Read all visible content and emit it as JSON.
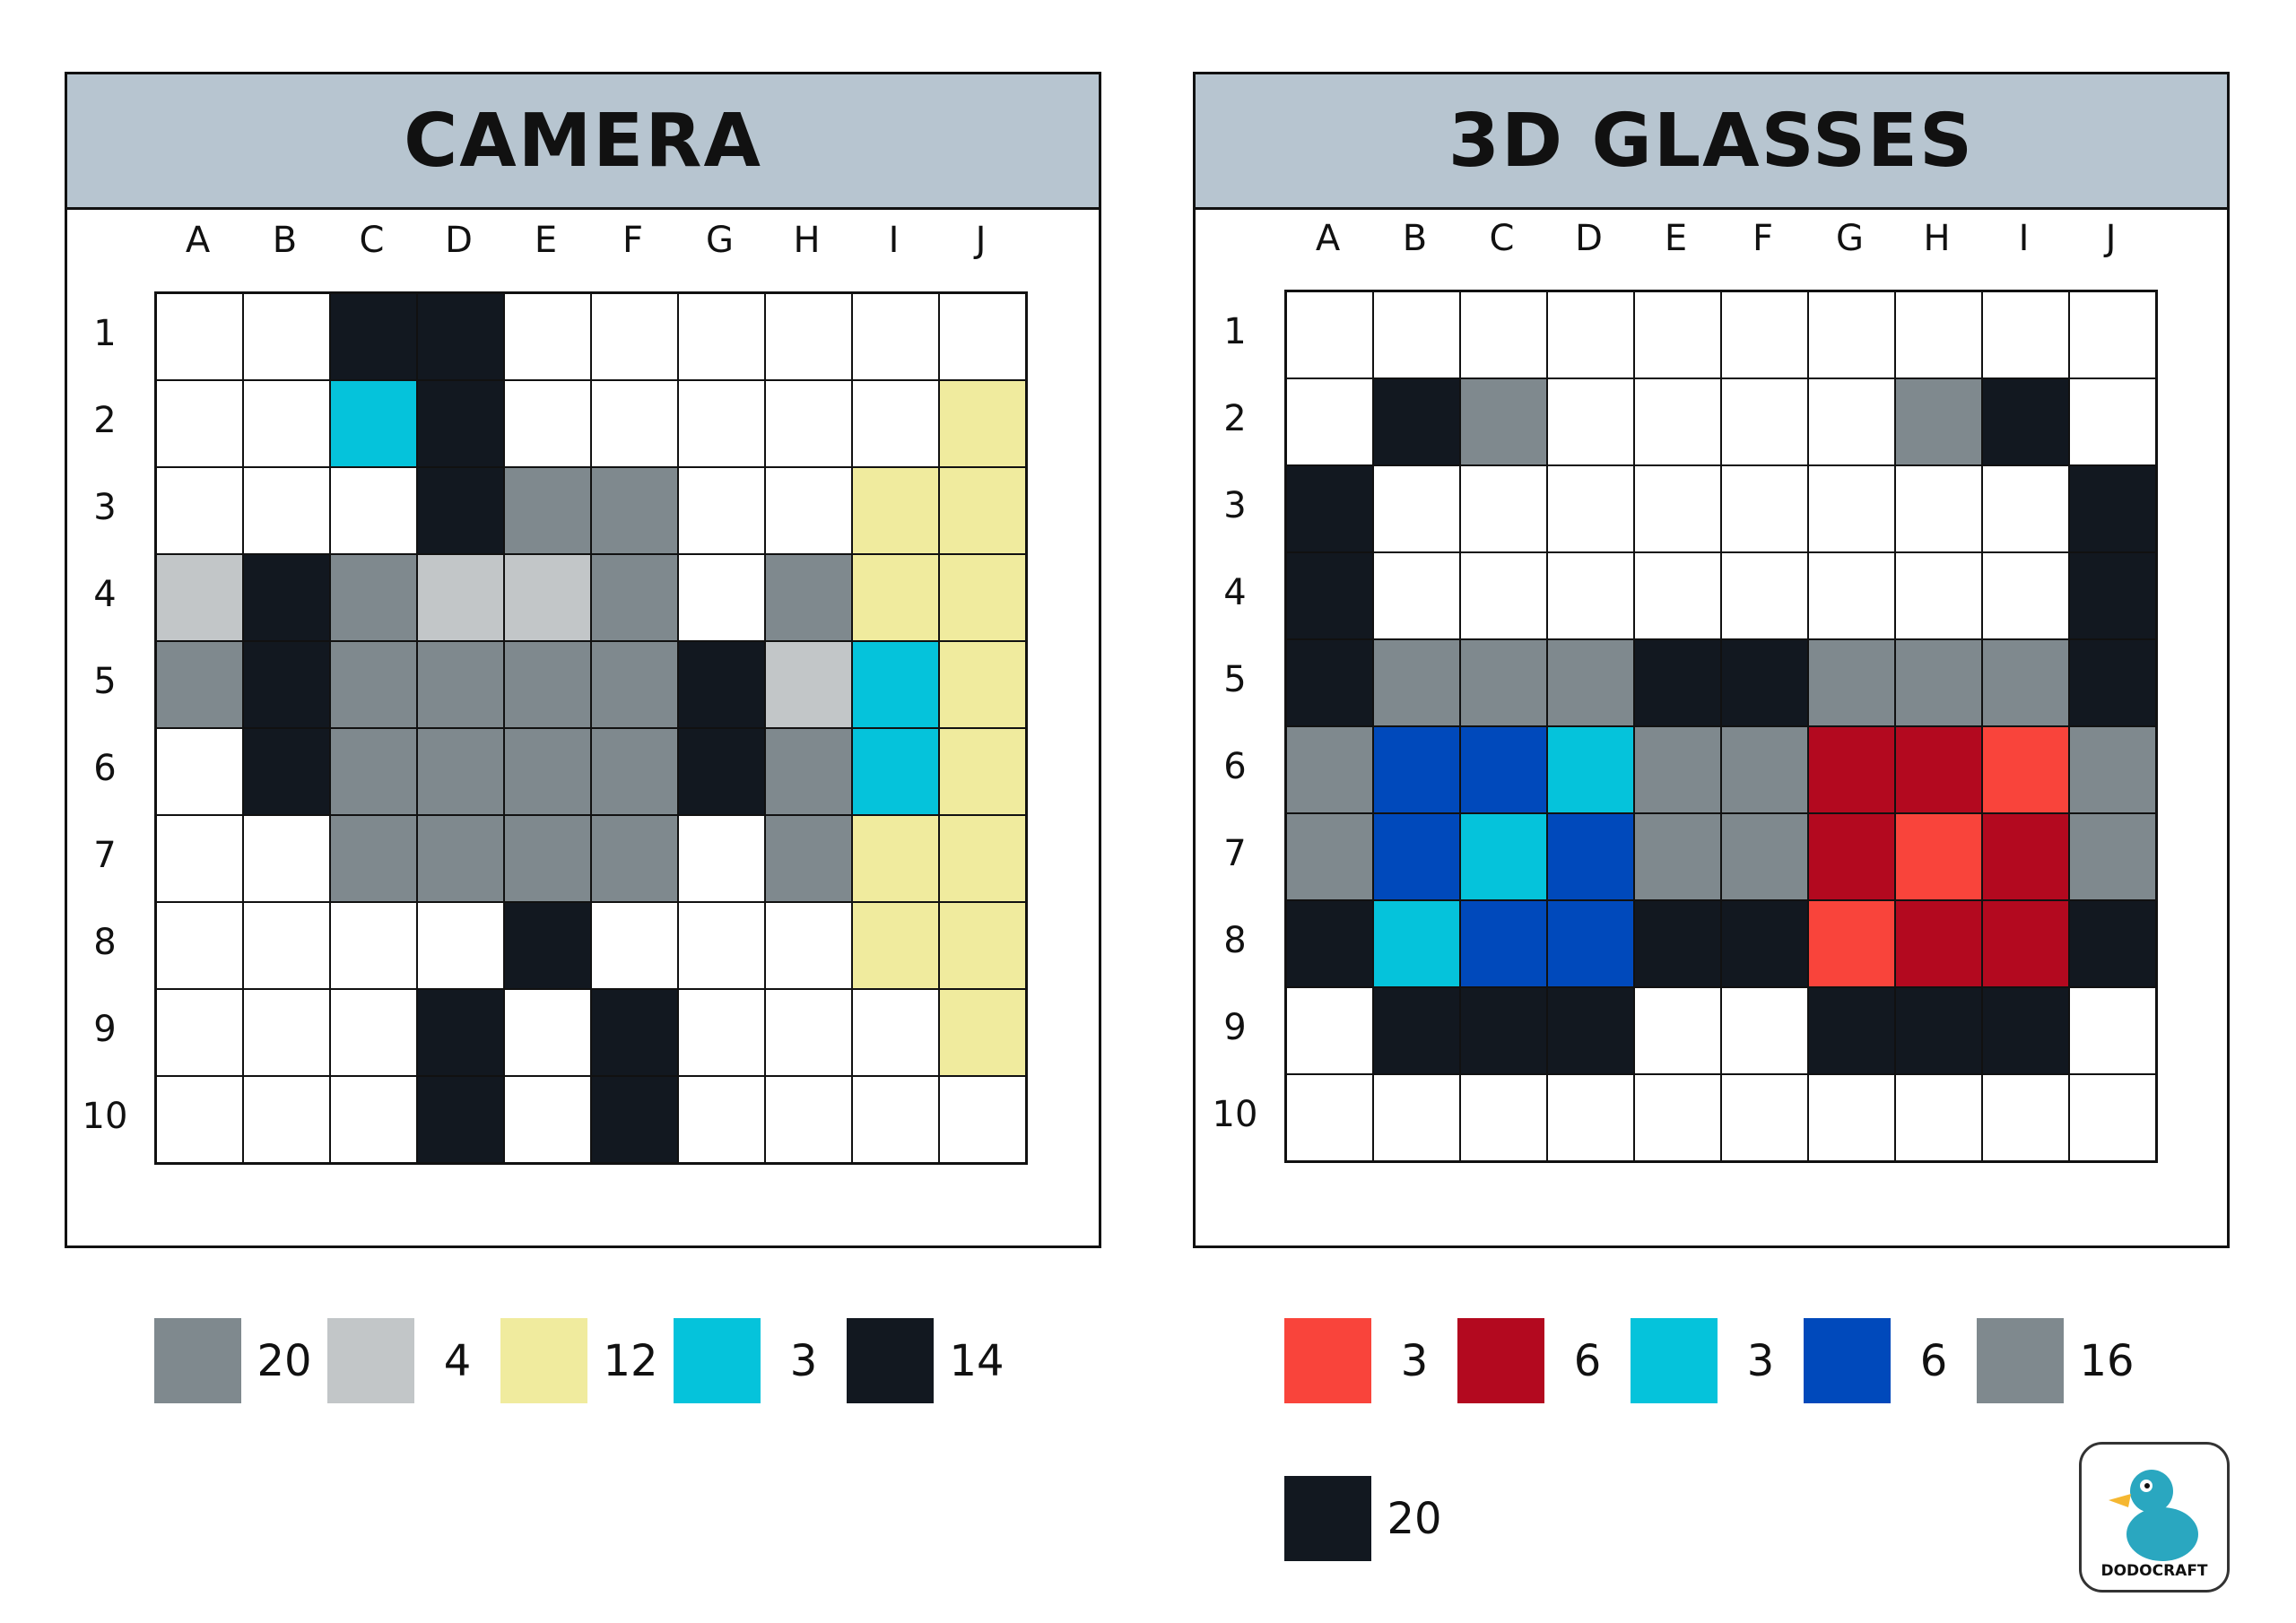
{
  "palette": {
    "w": "#ffffff",
    "k": "#121820",
    "g": "#7f898e",
    "l": "#c2c6c8",
    "y": "#f0eb9e",
    "c": "#05c3db",
    "r": "#f9443b",
    "d": "#b3091f",
    "b": "#0049bb"
  },
  "columns": [
    "A",
    "B",
    "C",
    "D",
    "E",
    "F",
    "G",
    "H",
    "I",
    "J"
  ],
  "rows": [
    "1",
    "2",
    "3",
    "4",
    "5",
    "6",
    "7",
    "8",
    "9",
    "10"
  ],
  "puzzles": [
    {
      "title": "CAMERA",
      "grid": [
        "wwkkwwwwww",
        "wwckwwwwwy",
        "wwwkggwwyy",
        "lkgllgwgyy",
        "gkggggklcy",
        "wkggggkgcy",
        "wwggggwgyy",
        "wwwwkwwwyy",
        "wwwkwkwwwy",
        "wwwkwkwwww"
      ],
      "legend": [
        {
          "color": "g",
          "count": "20"
        },
        {
          "color": "l",
          "count": "4"
        },
        {
          "color": "y",
          "count": "12"
        },
        {
          "color": "c",
          "count": "3"
        },
        {
          "color": "k",
          "count": "14"
        }
      ]
    },
    {
      "title": "3D GLASSES",
      "grid": [
        "wwwwwwwwww",
        "wkgwwwwgkw",
        "kwwwwwwwwk",
        "kwwwwwwwwk",
        "kgggkkgggk",
        "gbbcggddrg",
        "gbcbggdrdg",
        "kcbbkkrddk",
        "wkkkwwkkkw",
        "wwwwwwwwww"
      ],
      "legend": [
        {
          "color": "r",
          "count": "3"
        },
        {
          "color": "d",
          "count": "6"
        },
        {
          "color": "c",
          "count": "3"
        },
        {
          "color": "b",
          "count": "6"
        },
        {
          "color": "g",
          "count": "16"
        },
        {
          "color": "k",
          "count": "20"
        }
      ]
    }
  ],
  "logo": {
    "text": "DODOCRAFT"
  }
}
